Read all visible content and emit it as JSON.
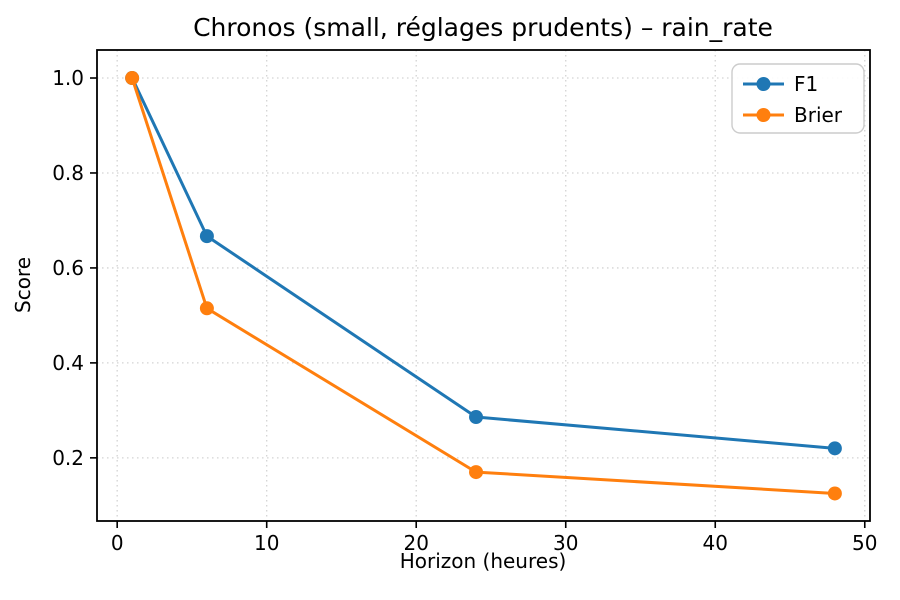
{
  "figure": {
    "background": "#ffffff",
    "spine_color": "#000000",
    "grid_color": "#d3d3d3"
  },
  "chart_data": {
    "type": "line",
    "title": "Chronos (small, réglages prudents) – rain_rate",
    "xlabel": "Horizon (heures)",
    "ylabel": "Score",
    "x": [
      1,
      6,
      24,
      48
    ],
    "series": [
      {
        "name": "F1",
        "color": "#1f77b4",
        "values": [
          1.0,
          0.667,
          0.286,
          0.22
        ]
      },
      {
        "name": "Brier",
        "color": "#ff7f0e",
        "values": [
          1.0,
          0.515,
          0.17,
          0.125
        ]
      }
    ],
    "xticks": [
      0,
      10,
      20,
      30,
      40,
      50
    ],
    "yticks": [
      0.2,
      0.4,
      0.6,
      0.8,
      1.0
    ],
    "xlim": [
      -1.35,
      50.35
    ],
    "ylim": [
      0.067,
      1.059
    ],
    "grid": true,
    "grid_style": "dotted",
    "legend_position": "upper right",
    "marker": "circle"
  }
}
